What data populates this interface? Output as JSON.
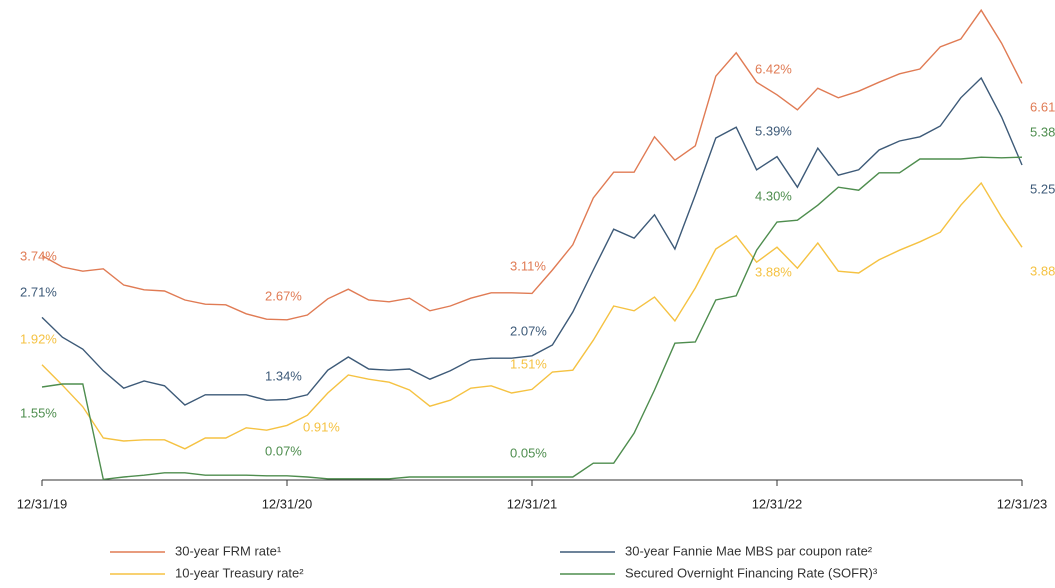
{
  "chart_data": {
    "type": "line",
    "categories": [
      "12/31/19",
      null,
      null,
      null,
      null,
      null,
      null,
      null,
      null,
      null,
      null,
      null,
      "12/31/20",
      null,
      null,
      null,
      null,
      null,
      null,
      null,
      null,
      null,
      null,
      null,
      "12/31/21",
      null,
      null,
      null,
      null,
      null,
      null,
      null,
      null,
      null,
      null,
      null,
      "12/31/22",
      null,
      null,
      null,
      null,
      null,
      null,
      null,
      null,
      null,
      null,
      null,
      "12/31/23"
    ],
    "ylim": [
      0,
      8
    ],
    "series": [
      {
        "name": "30-year FRM rate¹",
        "color": "#e07b54",
        "values": [
          3.74,
          3.55,
          3.48,
          3.52,
          3.25,
          3.17,
          3.15,
          3.0,
          2.93,
          2.92,
          2.77,
          2.68,
          2.67,
          2.75,
          3.02,
          3.18,
          3.0,
          2.97,
          3.03,
          2.82,
          2.9,
          3.03,
          3.12,
          3.12,
          3.11,
          3.5,
          3.92,
          4.7,
          5.13,
          5.13,
          5.72,
          5.33,
          5.57,
          6.73,
          7.12,
          6.63,
          6.42,
          6.17,
          6.53,
          6.37,
          6.48,
          6.63,
          6.77,
          6.85,
          7.22,
          7.35,
          7.83,
          7.28,
          6.61
        ],
        "value_labels": [
          "3.74%",
          null,
          null,
          null,
          null,
          null,
          null,
          null,
          null,
          null,
          null,
          null,
          "2.67%",
          null,
          null,
          null,
          null,
          null,
          null,
          null,
          null,
          null,
          null,
          null,
          "3.11%",
          null,
          null,
          null,
          null,
          null,
          null,
          null,
          null,
          null,
          null,
          null,
          "6.42%",
          null,
          null,
          null,
          null,
          null,
          null,
          null,
          null,
          null,
          null,
          null,
          "6.61%"
        ]
      },
      {
        "name": "30-year Fannie Mae MBS par coupon rate²",
        "color": "#3d5a78",
        "values": [
          2.71,
          2.38,
          2.18,
          1.82,
          1.53,
          1.65,
          1.57,
          1.25,
          1.42,
          1.42,
          1.42,
          1.33,
          1.34,
          1.42,
          1.83,
          2.05,
          1.85,
          1.83,
          1.85,
          1.68,
          1.82,
          2.0,
          2.03,
          2.03,
          2.07,
          2.25,
          2.8,
          3.5,
          4.18,
          4.03,
          4.42,
          3.85,
          4.75,
          5.7,
          5.88,
          5.17,
          5.39,
          4.88,
          5.53,
          5.08,
          5.17,
          5.5,
          5.65,
          5.72,
          5.9,
          6.37,
          6.7,
          6.05,
          5.25
        ],
        "value_labels": [
          "2.71%",
          null,
          null,
          null,
          null,
          null,
          null,
          null,
          null,
          null,
          null,
          null,
          "1.34%",
          null,
          null,
          null,
          null,
          null,
          null,
          null,
          null,
          null,
          null,
          null,
          "2.07%",
          null,
          null,
          null,
          null,
          null,
          null,
          null,
          null,
          null,
          null,
          null,
          "5.39%",
          null,
          null,
          null,
          null,
          null,
          null,
          null,
          null,
          null,
          null,
          null,
          "5.25%"
        ]
      },
      {
        "name": "10-year Treasury rate²",
        "color": "#f5c242",
        "values": [
          1.92,
          1.58,
          1.22,
          0.7,
          0.65,
          0.67,
          0.67,
          0.52,
          0.7,
          0.7,
          0.87,
          0.83,
          0.91,
          1.08,
          1.45,
          1.75,
          1.68,
          1.63,
          1.5,
          1.23,
          1.33,
          1.53,
          1.57,
          1.45,
          1.51,
          1.8,
          1.83,
          2.33,
          2.9,
          2.82,
          3.05,
          2.65,
          3.2,
          3.85,
          4.07,
          3.63,
          3.88,
          3.53,
          3.95,
          3.48,
          3.45,
          3.67,
          3.83,
          3.97,
          4.13,
          4.58,
          4.95,
          4.38,
          3.88
        ],
        "value_labels": [
          "1.92%",
          null,
          null,
          null,
          null,
          null,
          null,
          null,
          null,
          null,
          null,
          null,
          "0.91%",
          null,
          null,
          null,
          null,
          null,
          null,
          null,
          null,
          null,
          null,
          null,
          "1.51%",
          null,
          null,
          null,
          null,
          null,
          null,
          null,
          null,
          null,
          null,
          null,
          "3.88%",
          null,
          null,
          null,
          null,
          null,
          null,
          null,
          null,
          null,
          null,
          null,
          "3.88%"
        ]
      },
      {
        "name": "Secured Overnight Financing Rate (SOFR)³",
        "color": "#4e8d4e",
        "values": [
          1.55,
          1.6,
          1.6,
          0.01,
          0.05,
          0.08,
          0.12,
          0.12,
          0.08,
          0.08,
          0.08,
          0.07,
          0.07,
          0.05,
          0.02,
          0.02,
          0.02,
          0.02,
          0.05,
          0.05,
          0.05,
          0.05,
          0.05,
          0.05,
          0.05,
          0.05,
          0.05,
          0.28,
          0.28,
          0.78,
          1.5,
          2.28,
          2.3,
          3.0,
          3.07,
          3.83,
          4.3,
          4.33,
          4.58,
          4.88,
          4.83,
          5.12,
          5.12,
          5.35,
          5.35,
          5.35,
          5.38,
          5.37,
          5.38
        ],
        "value_labels": [
          "1.55%",
          null,
          null,
          null,
          null,
          null,
          null,
          null,
          null,
          null,
          null,
          null,
          "0.07%",
          null,
          null,
          null,
          null,
          null,
          null,
          null,
          null,
          null,
          null,
          null,
          "0.05%",
          null,
          null,
          null,
          null,
          null,
          null,
          null,
          null,
          null,
          null,
          null,
          "4.30%",
          null,
          null,
          null,
          null,
          null,
          null,
          null,
          null,
          null,
          null,
          null,
          "5.38%"
        ]
      }
    ]
  }
}
